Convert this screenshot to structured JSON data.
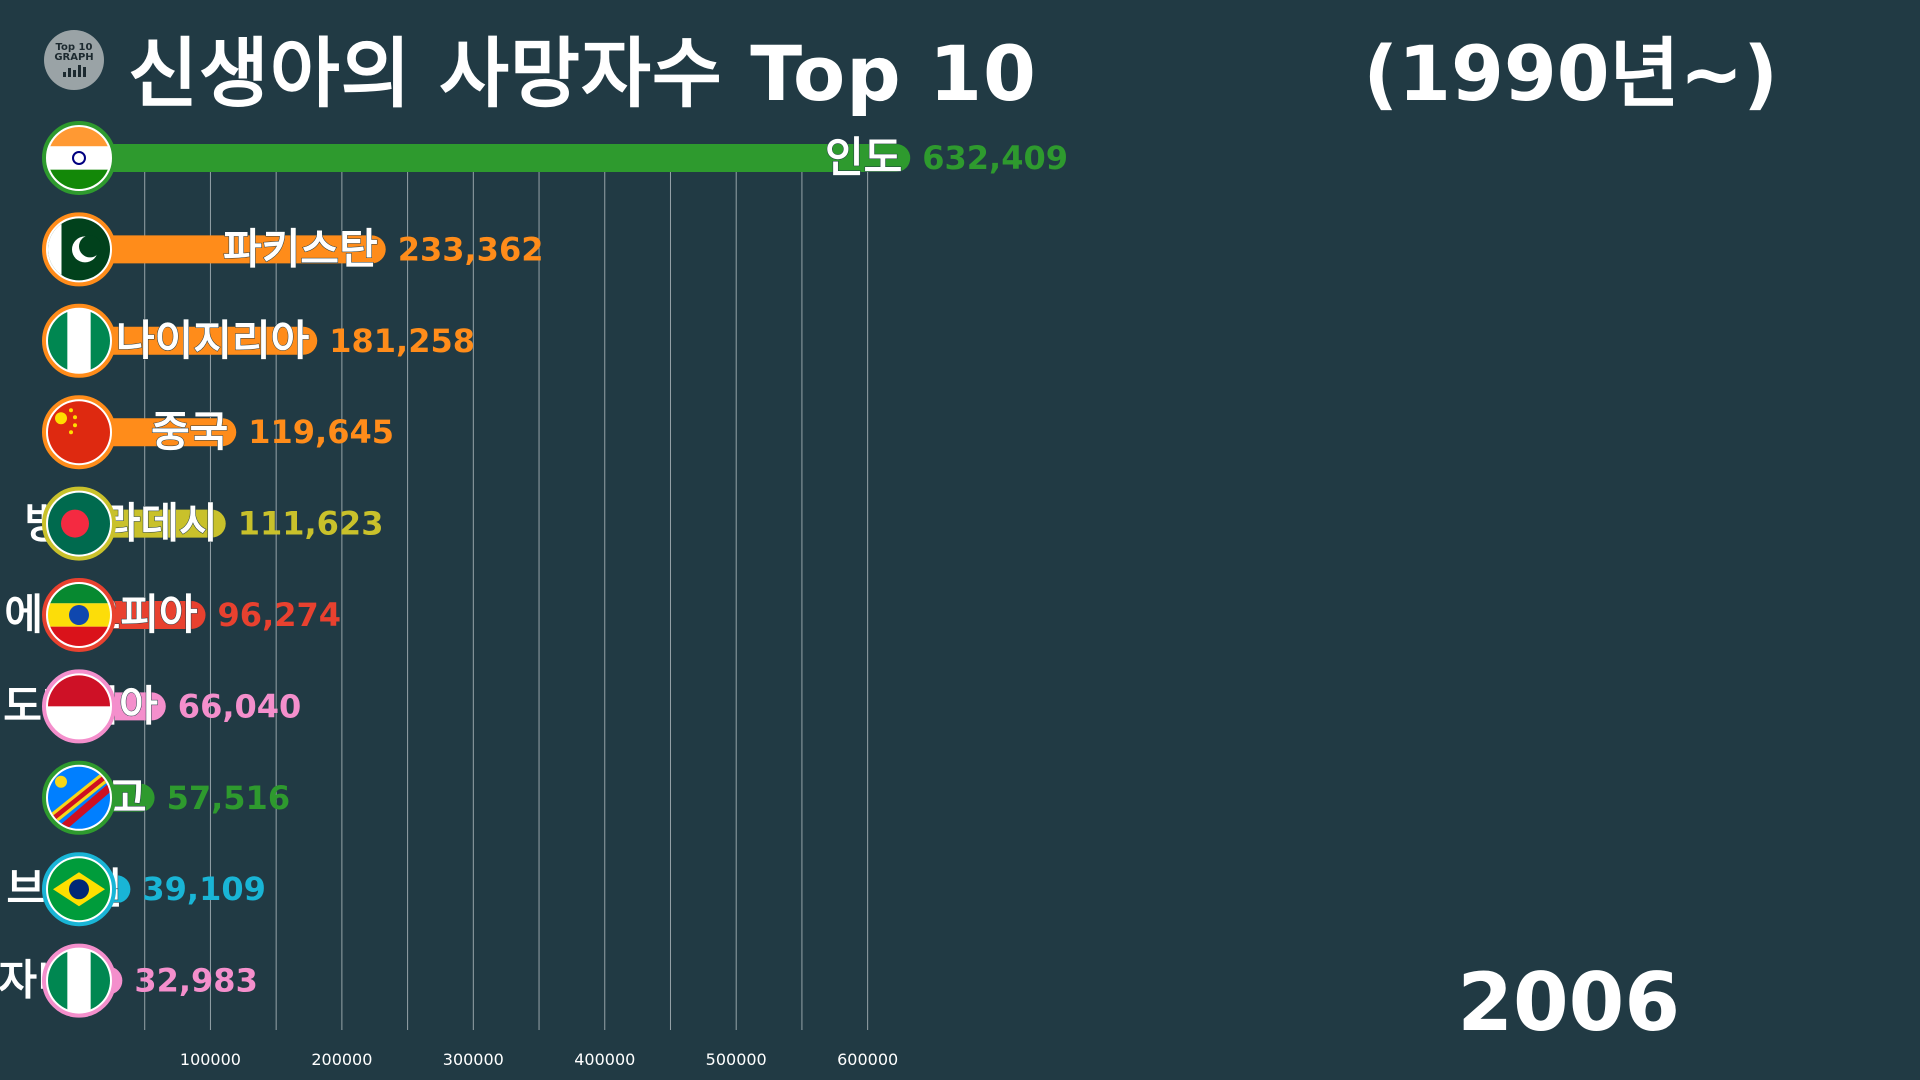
{
  "logo": {
    "line1": "Top 10",
    "line2": "GRAPH"
  },
  "header": {
    "title": "신생아의 사망자수 Top 10",
    "subtitle": "(1990년~)"
  },
  "year": "2006",
  "chart_data": {
    "type": "bar",
    "orientation": "horizontal",
    "title": "신생아의 사망자수 Top 10",
    "subtitle": "(1990년~)",
    "categories": [
      "인도",
      "파키스탄",
      "나이지리아",
      "중국",
      "방글라데시",
      "에티오피아",
      "인도네시아",
      "콩고",
      "브라질",
      "탄자니아"
    ],
    "values": [
      632409,
      233362,
      181258,
      119645,
      111623,
      96274,
      66040,
      57516,
      39109,
      32983
    ],
    "value_labels": [
      "632,409",
      "233,362",
      "181,258",
      "119,645",
      "111,623",
      "96,274",
      "66,040",
      "57,516",
      "39,109",
      "32,983"
    ],
    "colors": [
      "#2e9a2e",
      "#ff8c1a",
      "#ff8c1a",
      "#ff8c1a",
      "#c9c12b",
      "#e8412f",
      "#f48fcc",
      "#2e9a2e",
      "#19b5d6",
      "#f48fcc"
    ],
    "flags": [
      "india-flag",
      "pakistan-flag",
      "nigeria-flag",
      "china-flag",
      "bangladesh-flag",
      "ethiopia-flag",
      "indonesia-flag",
      "dr-congo-flag",
      "brazil-flag",
      "tanzania-flag"
    ],
    "xticks": [
      100000,
      200000,
      300000,
      400000,
      500000,
      600000
    ],
    "xtick_labels": [
      "100000",
      "200000",
      "300000",
      "400000",
      "500000",
      "600000"
    ],
    "grid": true,
    "legend": "none"
  }
}
